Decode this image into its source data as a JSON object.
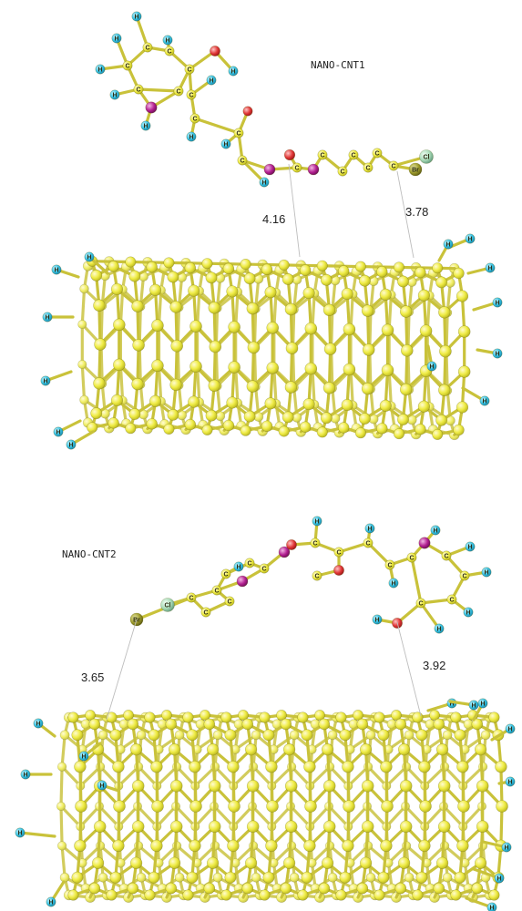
{
  "panels": [
    {
      "label": "NANO-CNT1",
      "distances": [
        "4.16",
        "3.78"
      ]
    },
    {
      "label": "NANO-CNT2",
      "distances": [
        "3.65",
        "3.92"
      ]
    }
  ],
  "atom_symbols": {
    "carbon": "C",
    "hydrogen": "H",
    "chlorine": "Cl",
    "bromine": "Br"
  },
  "colors": {
    "carbon": "#f2f04a",
    "hydrogen": "#3cc6e6",
    "oxygen": "#e23a3a",
    "nitrogen": "#b0208e",
    "chlorine": "#a9d9b8",
    "bromine": "#9a9a2a",
    "bond": "#c9c23a"
  }
}
